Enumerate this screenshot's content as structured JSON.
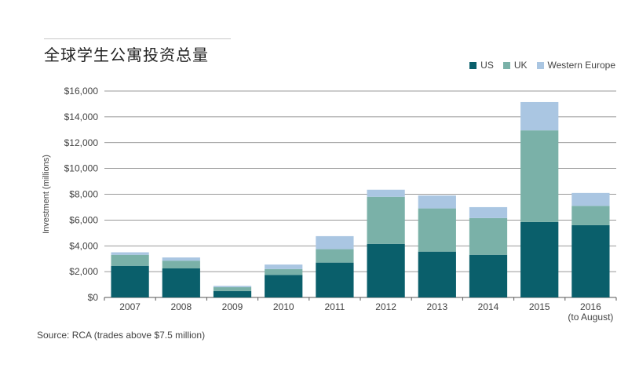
{
  "title": "全球学生公寓投资总量",
  "source": "Source: RCA (trades above $7.5 million)",
  "legend": [
    {
      "name": "US",
      "color": "#0a5f6b"
    },
    {
      "name": "UK",
      "color": "#7ab1a8"
    },
    {
      "name": "Western Europe",
      "color": "#aac6e2"
    }
  ],
  "chart_data": {
    "type": "bar",
    "stacked": true,
    "categories": [
      "2007",
      "2008",
      "2009",
      "2010",
      "2011",
      "2012",
      "2013",
      "2014",
      "2015",
      "2016\n(to August)"
    ],
    "category_lines": [
      [
        "2007"
      ],
      [
        "2008"
      ],
      [
        "2009"
      ],
      [
        "2010"
      ],
      [
        "2011"
      ],
      [
        "2012"
      ],
      [
        "2013"
      ],
      [
        "2014"
      ],
      [
        "2015"
      ],
      [
        "2016",
        "(to August)"
      ]
    ],
    "series": [
      {
        "name": "US",
        "color": "#0a5f6b",
        "values": [
          2450,
          2250,
          500,
          1750,
          2700,
          4150,
          3550,
          3300,
          5850,
          5600
        ]
      },
      {
        "name": "UK",
        "color": "#7ab1a8",
        "values": [
          850,
          600,
          300,
          450,
          1050,
          3650,
          3350,
          2850,
          7100,
          1500
        ]
      },
      {
        "name": "Western Europe",
        "color": "#aac6e2",
        "values": [
          200,
          250,
          100,
          350,
          1000,
          550,
          1000,
          850,
          2200,
          1000
        ]
      }
    ],
    "ylabel": "Investment (millions)",
    "ylim": [
      0,
      16000
    ],
    "yticks": [
      0,
      2000,
      4000,
      6000,
      8000,
      10000,
      12000,
      14000,
      16000
    ],
    "ytick_labels": [
      "$0",
      "$2,000",
      "$4,000",
      "$6,000",
      "$8,000",
      "$10,000",
      "$12,000",
      "$14,000",
      "$16,000"
    ],
    "grid": true,
    "legend_position": "top-right"
  }
}
